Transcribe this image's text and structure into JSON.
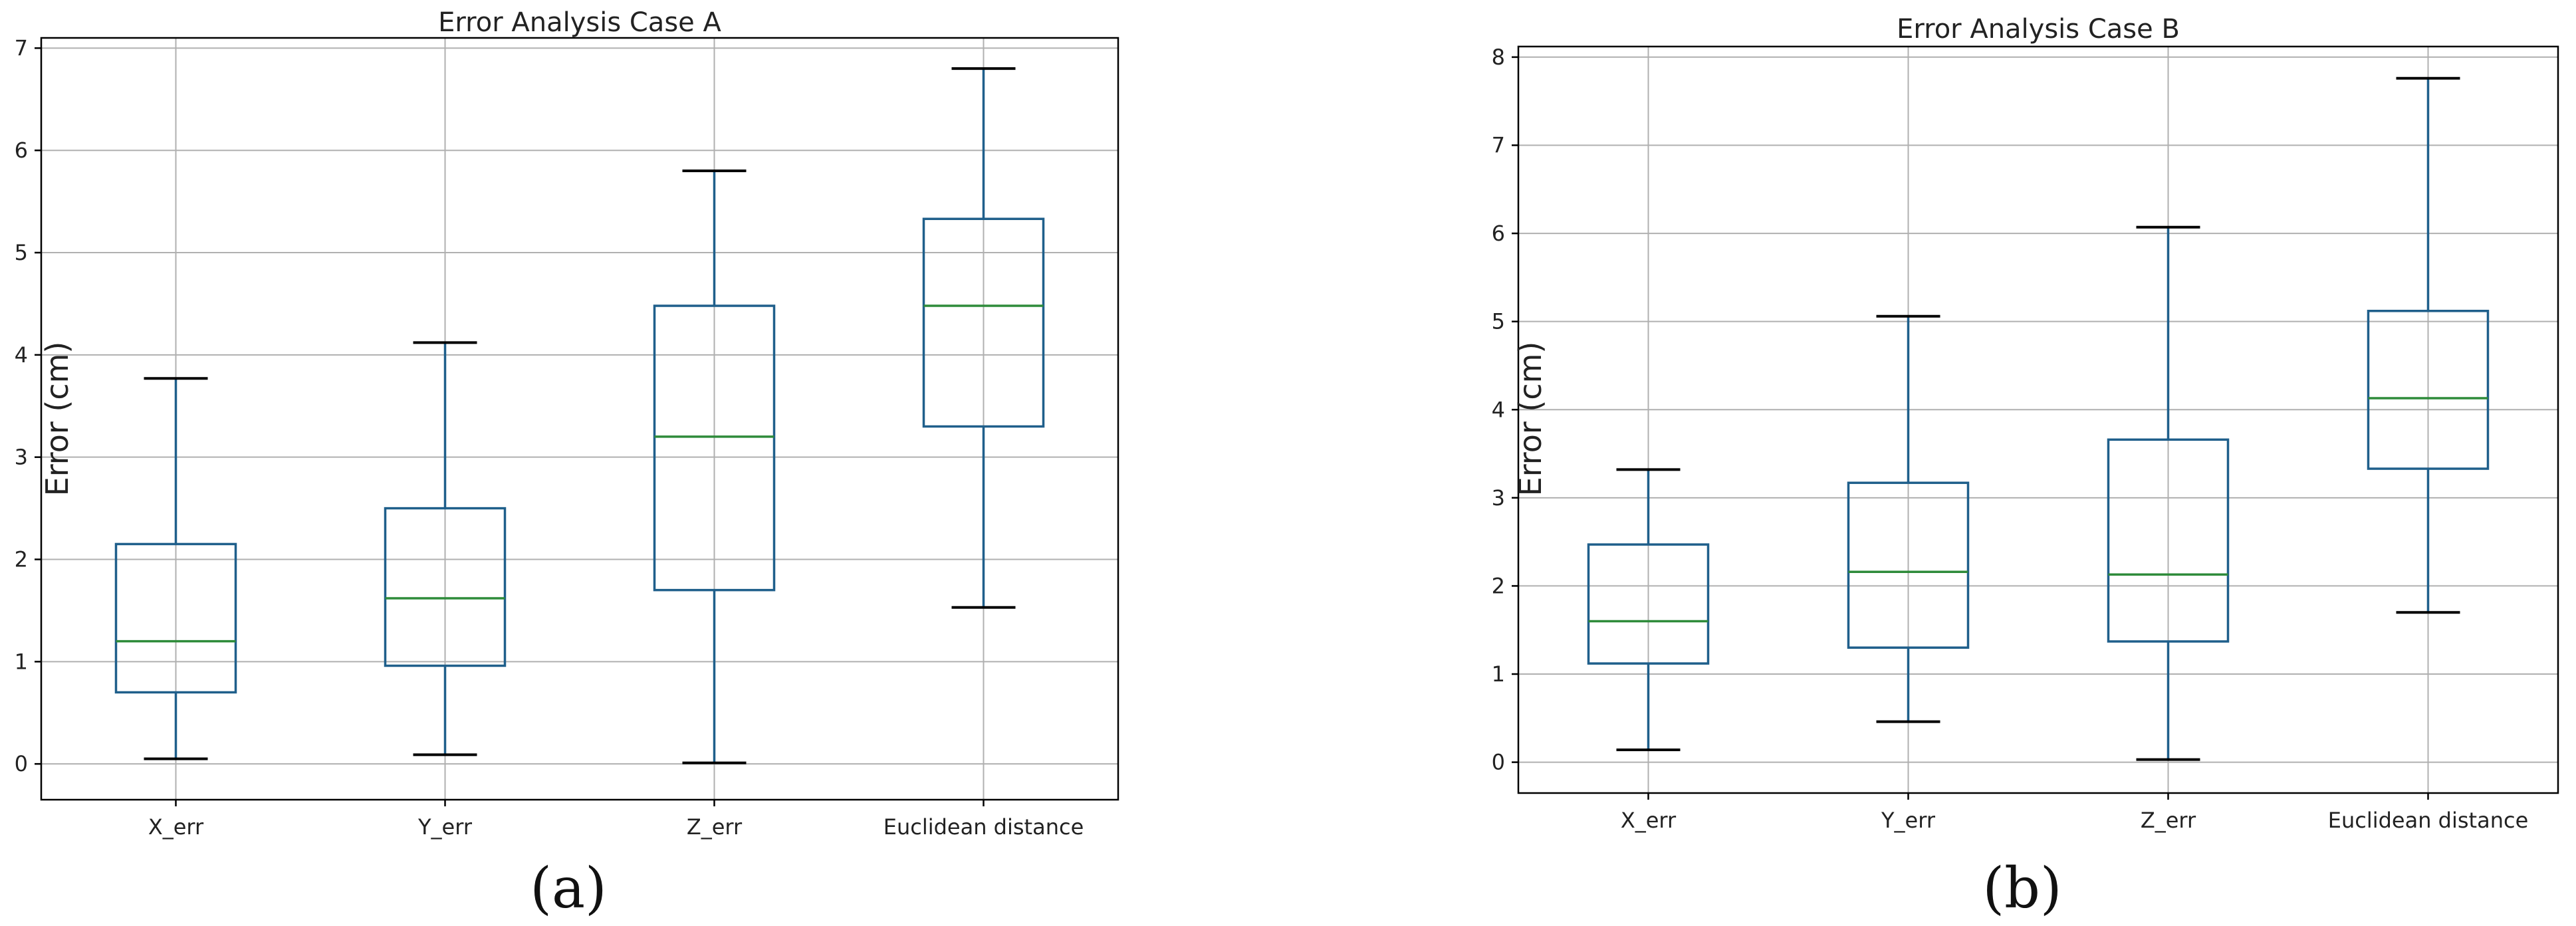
{
  "colors": {
    "box": "#1f5f8b",
    "median": "#2e8b3a",
    "cap": "#000000"
  },
  "chart_data": [
    {
      "type": "box",
      "title": "Error Analysis Case A",
      "ylabel": "Error (cm)",
      "panel_label": "(a)",
      "ylim": [
        -0.35,
        7.1
      ],
      "yticks": [
        "0",
        "1",
        "2",
        "3",
        "4",
        "5",
        "6",
        "7"
      ],
      "grid": true,
      "categories": [
        "X_err",
        "Y_err",
        "Z_err",
        "Euclidean distance"
      ],
      "boxes": [
        {
          "whislo": 0.05,
          "q1": 0.7,
          "med": 1.2,
          "q3": 2.15,
          "whishi": 3.77
        },
        {
          "whislo": 0.09,
          "q1": 0.96,
          "med": 1.62,
          "q3": 2.5,
          "whishi": 4.12
        },
        {
          "whislo": 0.01,
          "q1": 1.7,
          "med": 3.2,
          "q3": 4.48,
          "whishi": 5.8
        },
        {
          "whislo": 1.53,
          "q1": 3.3,
          "med": 4.48,
          "q3": 5.33,
          "whishi": 6.8
        }
      ]
    },
    {
      "type": "box",
      "title": "Error Analysis Case B",
      "ylabel": "Error (cm)",
      "panel_label": "(b)",
      "ylim": [
        -0.35,
        8.12
      ],
      "yticks": [
        "0",
        "1",
        "2",
        "3",
        "4",
        "5",
        "6",
        "7",
        "8"
      ],
      "grid": true,
      "categories": [
        "X_err",
        "Y_err",
        "Z_err",
        "Euclidean distance"
      ],
      "boxes": [
        {
          "whislo": 0.14,
          "q1": 1.12,
          "med": 1.6,
          "q3": 2.47,
          "whishi": 3.32
        },
        {
          "whislo": 0.46,
          "q1": 1.3,
          "med": 2.16,
          "q3": 3.17,
          "whishi": 5.06
        },
        {
          "whislo": 0.03,
          "q1": 1.37,
          "med": 2.13,
          "q3": 3.66,
          "whishi": 6.07
        },
        {
          "whislo": 1.7,
          "q1": 3.33,
          "med": 4.13,
          "q3": 5.12,
          "whishi": 7.76
        }
      ]
    }
  ]
}
